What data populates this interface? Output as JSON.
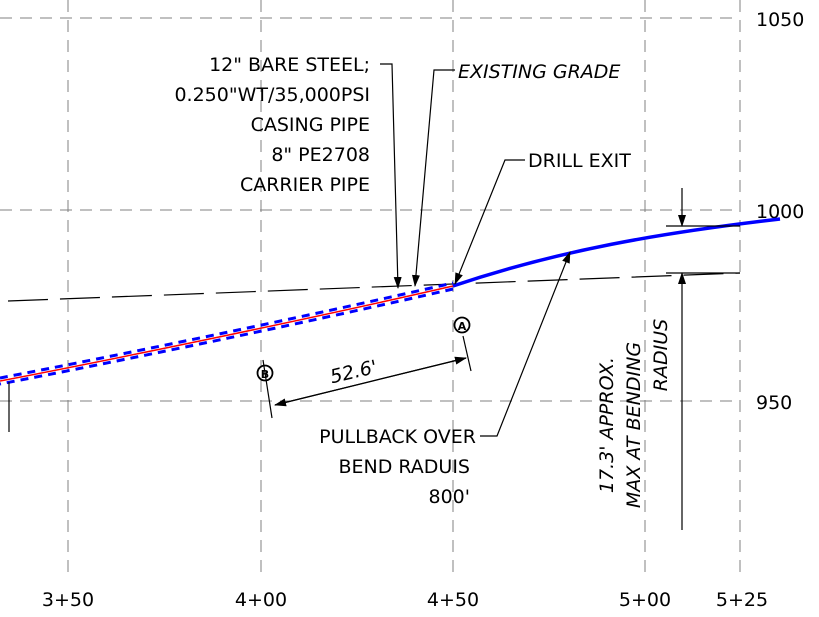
{
  "axes": {
    "x_ticks": [
      "3+50",
      "4+00",
      "4+50",
      "5+00",
      "5+25"
    ],
    "y_ticks": [
      "1050",
      "1000",
      "950"
    ]
  },
  "callouts": {
    "pipe_spec": [
      "12\" BARE STEEL;",
      "0.250\"WT/35,000PSI",
      "CASING PIPE",
      "8\" PE2708",
      "CARRIER PIPE"
    ],
    "existing_grade": "EXISTING GRADE",
    "drill_exit": "DRILL EXIT",
    "pullback": [
      "PULLBACK OVER",
      "BEND RADUIS",
      "800'"
    ],
    "dimension": "52.6'",
    "bending_note": [
      "17.3' APPROX.",
      "MAX AT BENDING",
      "RADIUS"
    ]
  },
  "markers": {
    "a": "A",
    "b": "B"
  },
  "colors": {
    "carrier_pipe": "#0000ff",
    "centerline": "#ff0000",
    "grid": "#808080",
    "linework": "#000000"
  }
}
